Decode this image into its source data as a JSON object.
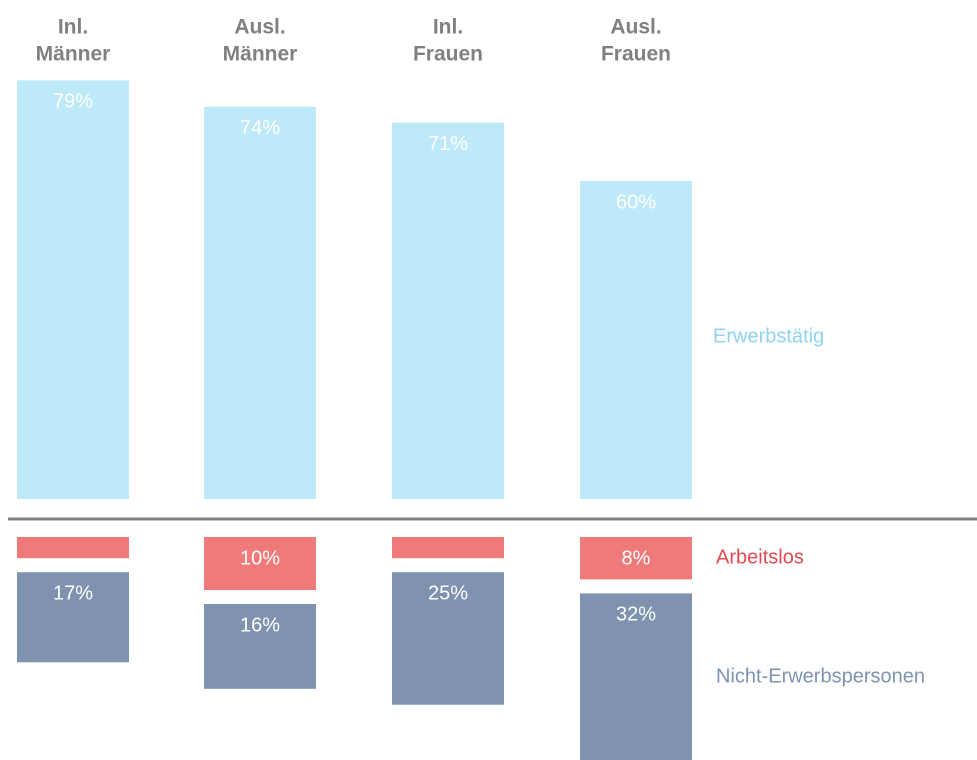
{
  "chart_data": {
    "type": "diverging_bar",
    "categories": [
      [
        "Inl.",
        "Männer"
      ],
      [
        "Ausl.",
        "Männer"
      ],
      [
        "Inl.",
        "Frauen"
      ],
      [
        "Ausl.",
        "Frauen"
      ]
    ],
    "series": [
      {
        "name": "Erwerbstätig",
        "color": "#bde9f9",
        "label_color": "#8fd3f0",
        "values": [
          79,
          74,
          71,
          60
        ],
        "value_labels": [
          "79%",
          "74%",
          "71%",
          "60%"
        ],
        "direction": "up"
      },
      {
        "name": "Arbeitslos",
        "color": "#f07a7a",
        "label_color": "#e04a50",
        "values": [
          4,
          10,
          4,
          8
        ],
        "value_labels": [
          null,
          "10%",
          null,
          "8%"
        ],
        "direction": "down"
      },
      {
        "name": "Nicht-Erwerbspersonen",
        "color": "#7f93b1",
        "label_color": "#7f93b1",
        "values": [
          17,
          16,
          25,
          32
        ],
        "value_labels": [
          "17%",
          "16%",
          "25%",
          "32%"
        ],
        "direction": "down"
      }
    ]
  }
}
